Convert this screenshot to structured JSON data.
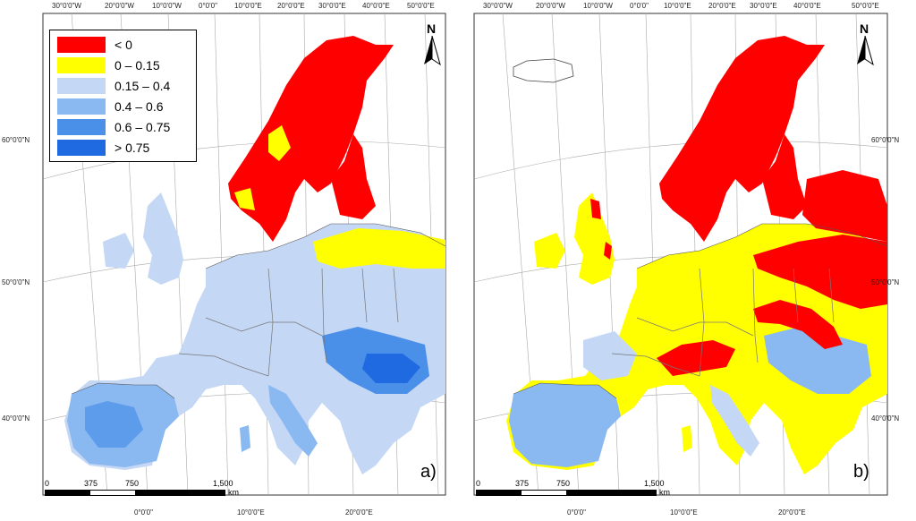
{
  "colors": {
    "ocean": "#ffffff",
    "outside": "#ffffff",
    "class_lt0": "#ff0000",
    "class_0_015": "#ffff00",
    "class_015_04": "#c4d7f5",
    "class_04_06": "#8ab8f0",
    "class_06_075": "#4a8fe8",
    "class_gt075": "#1f6ae0"
  },
  "legend": [
    {
      "label": "< 0",
      "color": "#ff0000"
    },
    {
      "label": "0 – 0.15",
      "color": "#ffff00"
    },
    {
      "label": "0.15 – 0.4",
      "color": "#c4d7f5"
    },
    {
      "label": "0.4 – 0.6",
      "color": "#8ab8f0"
    },
    {
      "label": "0.6 – 0.75",
      "color": "#4a8fe8"
    },
    {
      "label": "> 0.75",
      "color": "#1f6ae0"
    }
  ],
  "graticule": {
    "top_labels": [
      "30°0'0\"W",
      "20°0'0\"W",
      "10°0'0\"W",
      "0°0'0\"",
      "10°0'0\"E",
      "20°0'0\"E",
      "30°0'0\"E",
      "40°0'0\"E",
      "50°0'0\"E"
    ],
    "bottom_labels": [
      "0°0'0\"",
      "10°0'0\"E",
      "20°0'0\"E"
    ],
    "left_labels": [
      "60°0'0\"N",
      "50°0'0\"N",
      "40°0'0\"N"
    ]
  },
  "scalebar": {
    "ticks": [
      "0",
      "375",
      "750",
      "1,500"
    ],
    "unit": "km"
  },
  "north_label": "N",
  "panels": [
    {
      "id": "a",
      "letter": "a)"
    },
    {
      "id": "b",
      "letter": "b)"
    }
  ]
}
